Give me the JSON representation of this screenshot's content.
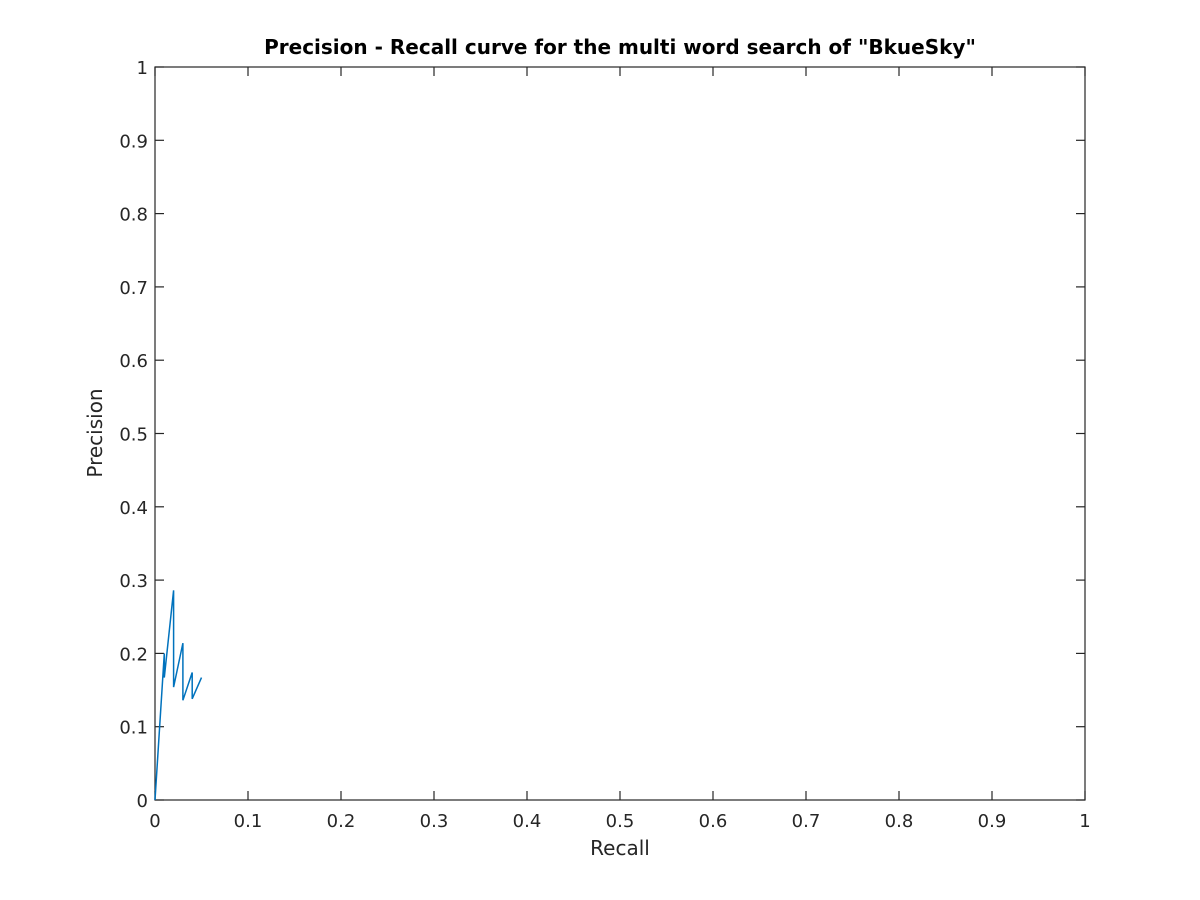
{
  "chart_data": {
    "type": "line",
    "title": "Precision - Recall curve for the multi word search of \"BkueSky\"",
    "xlabel": "Recall",
    "ylabel": "Precision",
    "xlim": [
      0,
      1
    ],
    "ylim": [
      0,
      1
    ],
    "grid": false,
    "legend": "none",
    "x_ticks": [
      0,
      0.1,
      0.2,
      0.3,
      0.4,
      0.5,
      0.6,
      0.7,
      0.8,
      0.9,
      1
    ],
    "y_ticks": [
      0,
      0.1,
      0.2,
      0.3,
      0.4,
      0.5,
      0.6,
      0.7,
      0.8,
      0.9,
      1
    ],
    "x_tick_labels": [
      "0",
      "0.1",
      "0.2",
      "0.3",
      "0.4",
      "0.5",
      "0.6",
      "0.7",
      "0.8",
      "0.9",
      "1"
    ],
    "y_tick_labels": [
      "0",
      "0.1",
      "0.2",
      "0.3",
      "0.4",
      "0.5",
      "0.6",
      "0.7",
      "0.8",
      "0.9",
      "1"
    ],
    "series": [
      {
        "color": "#0072bd",
        "x": [
          0,
          0.01,
          0.01,
          0.02,
          0.02,
          0.03,
          0.03,
          0.04,
          0.04,
          0.05
        ],
        "y": [
          0,
          0.2,
          0.167,
          0.286,
          0.154,
          0.214,
          0.136,
          0.174,
          0.138,
          0.167
        ]
      }
    ]
  }
}
